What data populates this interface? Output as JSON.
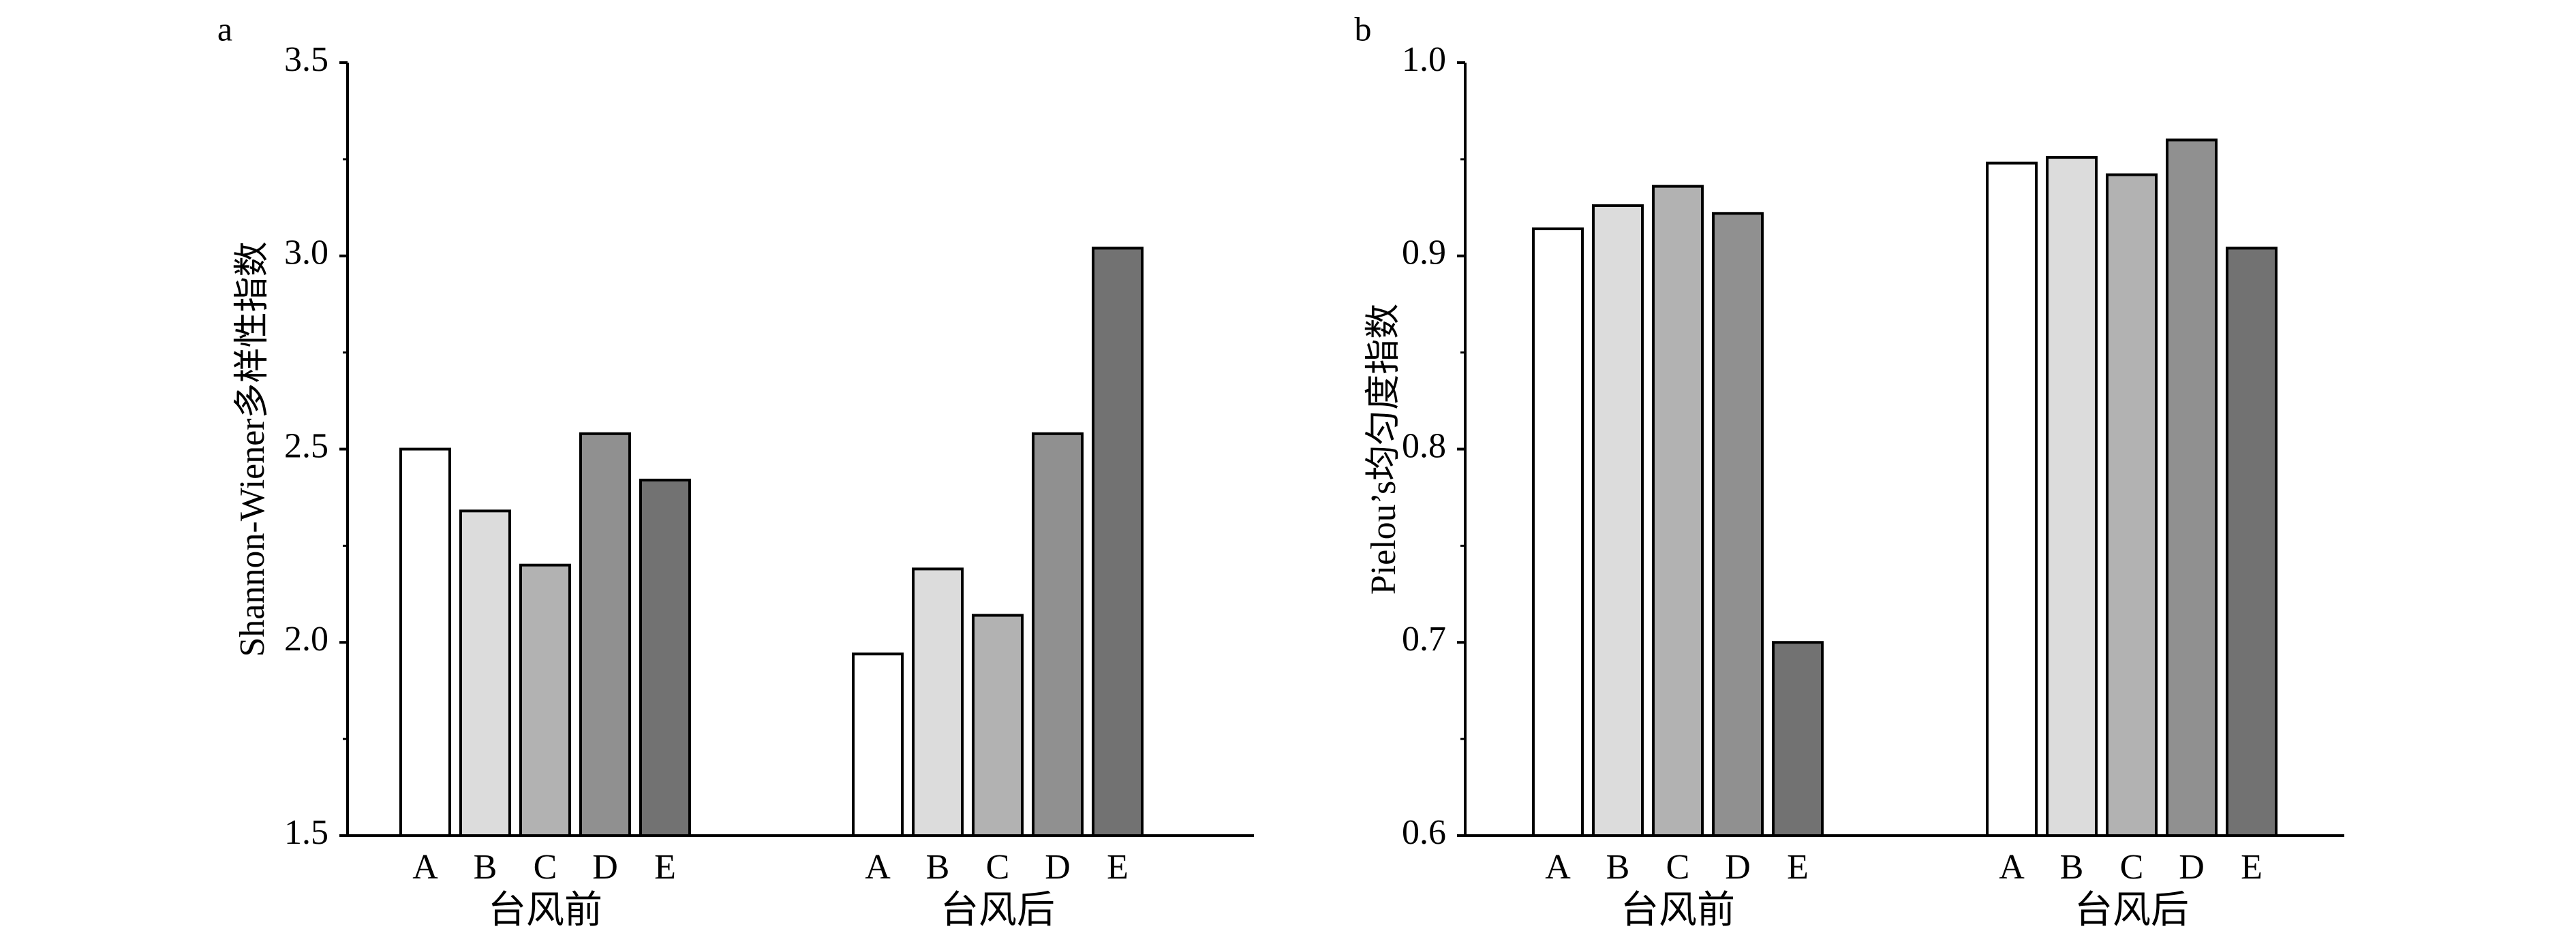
{
  "chart_data": [
    {
      "type": "bar",
      "panel_label": "a",
      "ylabel": "Shannon-Wiener多样性指数",
      "ylim": [
        1.5,
        3.5
      ],
      "yticks": [
        1.5,
        2.0,
        2.5,
        3.0,
        3.5
      ],
      "ytick_labels": [
        "1.5",
        "2.0",
        "2.5",
        "3.0",
        "3.5"
      ],
      "groups": [
        "台风前",
        "台风后"
      ],
      "categories": [
        "A",
        "B",
        "C",
        "D",
        "E"
      ],
      "colors": [
        "#ffffff",
        "#dcdcdc",
        "#b2b2b2",
        "#909090",
        "#727272"
      ],
      "series": [
        {
          "group": "台风前",
          "values": [
            2.5,
            2.34,
            2.2,
            2.54,
            2.42
          ]
        },
        {
          "group": "台风后",
          "values": [
            1.97,
            2.19,
            2.07,
            2.54,
            3.02
          ]
        }
      ],
      "grid": false
    },
    {
      "type": "bar",
      "panel_label": "b",
      "ylabel": "Pielou’s均匀度指数",
      "ylim": [
        0.6,
        1.0
      ],
      "yticks": [
        0.6,
        0.7,
        0.8,
        0.9,
        1.0
      ],
      "ytick_labels": [
        "0.6",
        "0.7",
        "0.8",
        "0.9",
        "1.0"
      ],
      "groups": [
        "台风前",
        "台风后"
      ],
      "categories": [
        "A",
        "B",
        "C",
        "D",
        "E"
      ],
      "colors": [
        "#ffffff",
        "#dcdcdc",
        "#b2b2b2",
        "#909090",
        "#727272"
      ],
      "series": [
        {
          "group": "台风前",
          "values": [
            0.914,
            0.926,
            0.936,
            0.922,
            0.7
          ]
        },
        {
          "group": "台风后",
          "values": [
            0.948,
            0.951,
            0.942,
            0.96,
            0.904
          ]
        }
      ],
      "grid": false
    }
  ]
}
